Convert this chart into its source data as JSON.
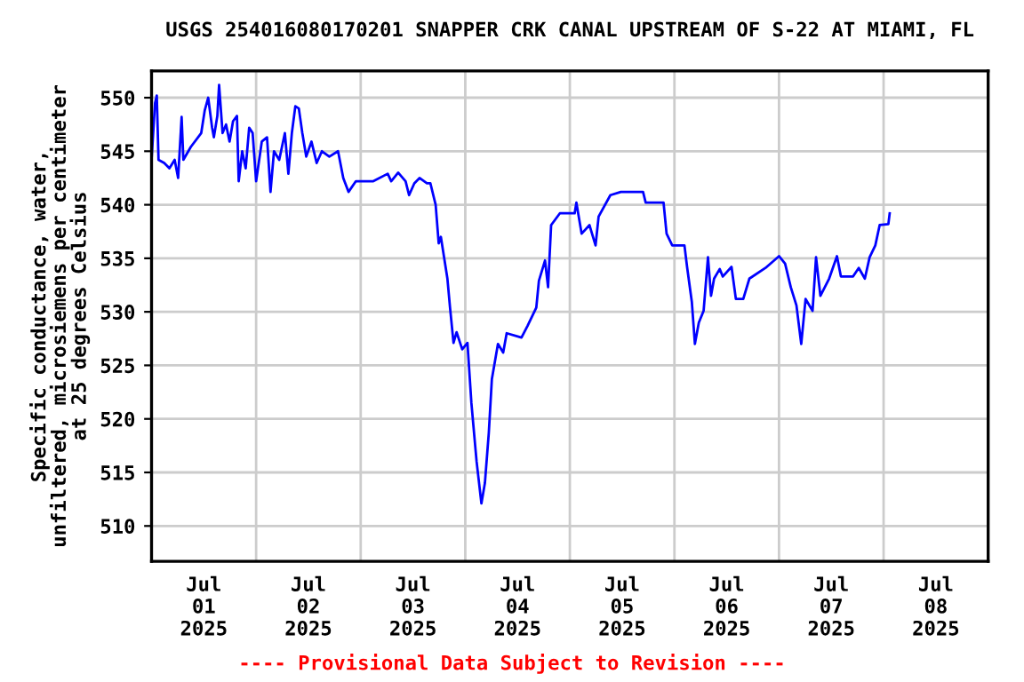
{
  "chart_data": {
    "type": "line",
    "title": "USGS 254016080170201 SNAPPER CRK CANAL UPSTREAM OF S-22 AT MIAMI, FL",
    "ylabel": "Specific conductance, water,\nunfiltered, microsiemens per centimeter\nat 25 degrees Celsius",
    "annotations": [
      "---- Provisional Data Subject to Revision ----"
    ],
    "series": [
      {
        "color": "#0000ff",
        "x": [
          "2025-07-01T00:00",
          "2025-07-01T00:48",
          "2025-07-01T01:12",
          "2025-07-01T01:36",
          "2025-07-01T02:54",
          "2025-07-01T04:06",
          "2025-07-01T05:18",
          "2025-07-01T06:06",
          "2025-07-01T06:54",
          "2025-07-01T07:18",
          "2025-07-01T09:00",
          "2025-07-01T11:24",
          "2025-07-01T12:12",
          "2025-07-01T13:00",
          "2025-07-01T13:54",
          "2025-07-01T14:18",
          "2025-07-01T15:06",
          "2025-07-01T15:30",
          "2025-07-01T16:18",
          "2025-07-01T17:06",
          "2025-07-01T17:54",
          "2025-07-01T18:42",
          "2025-07-01T19:36",
          "2025-07-01T20:00",
          "2025-07-01T20:48",
          "2025-07-01T21:36",
          "2025-07-01T22:24",
          "2025-07-01T23:12",
          "2025-07-02T00:00",
          "2025-07-02T01:18",
          "2025-07-02T02:30",
          "2025-07-02T03:18",
          "2025-07-02T04:06",
          "2025-07-02T05:18",
          "2025-07-02T06:36",
          "2025-07-02T07:24",
          "2025-07-02T08:12",
          "2025-07-02T09:00",
          "2025-07-02T09:48",
          "2025-07-02T10:36",
          "2025-07-02T11:30",
          "2025-07-02T12:42",
          "2025-07-02T13:54",
          "2025-07-02T15:06",
          "2025-07-02T16:48",
          "2025-07-02T18:48",
          "2025-07-02T20:00",
          "2025-07-02T21:12",
          "2025-07-02T22:54",
          "2025-07-03T02:54",
          "2025-07-03T06:12",
          "2025-07-03T07:00",
          "2025-07-03T08:36",
          "2025-07-03T10:18",
          "2025-07-03T11:06",
          "2025-07-03T12:18",
          "2025-07-03T13:30",
          "2025-07-03T15:12",
          "2025-07-03T16:00",
          "2025-07-03T17:12",
          "2025-07-03T17:54",
          "2025-07-03T18:24",
          "2025-07-03T19:54",
          "2025-07-03T20:30",
          "2025-07-03T21:18",
          "2025-07-03T22:00",
          "2025-07-03T23:18",
          "2025-07-04T00:30",
          "2025-07-04T01:24",
          "2025-07-04T02:36",
          "2025-07-04T03:42",
          "2025-07-04T04:30",
          "2025-07-04T05:24",
          "2025-07-04T06:06",
          "2025-07-04T07:30",
          "2025-07-04T08:42",
          "2025-07-04T09:30",
          "2025-07-04T12:54",
          "2025-07-04T14:18",
          "2025-07-04T16:18",
          "2025-07-04T16:54",
          "2025-07-04T18:18",
          "2025-07-04T19:00",
          "2025-07-04T19:42",
          "2025-07-04T21:42",
          "2025-07-05T01:06",
          "2025-07-05T01:30",
          "2025-07-05T02:42",
          "2025-07-05T04:30",
          "2025-07-05T05:54",
          "2025-07-05T06:36",
          "2025-07-05T09:18",
          "2025-07-05T11:42",
          "2025-07-05T16:48",
          "2025-07-05T17:24",
          "2025-07-05T21:30",
          "2025-07-05T22:12",
          "2025-07-05T23:30",
          "2025-07-06T02:18",
          "2025-07-06T02:54",
          "2025-07-06T04:00",
          "2025-07-06T04:42",
          "2025-07-06T05:36",
          "2025-07-06T06:42",
          "2025-07-06T07:42",
          "2025-07-06T08:24",
          "2025-07-06T09:06",
          "2025-07-06T10:24",
          "2025-07-06T11:06",
          "2025-07-06T13:06",
          "2025-07-06T14:06",
          "2025-07-06T15:48",
          "2025-07-06T17:12",
          "2025-07-06T20:54",
          "2025-07-07T00:00",
          "2025-07-07T01:24",
          "2025-07-07T02:42",
          "2025-07-07T04:00",
          "2025-07-07T05:06",
          "2025-07-07T06:06",
          "2025-07-07T07:42",
          "2025-07-07T08:30",
          "2025-07-07T09:30",
          "2025-07-07T11:30",
          "2025-07-07T13:18",
          "2025-07-07T14:12",
          "2025-07-07T17:00",
          "2025-07-07T18:18",
          "2025-07-07T19:42",
          "2025-07-07T20:48",
          "2025-07-07T22:06",
          "2025-07-07T23:06",
          "2025-07-08T01:06",
          "2025-07-08T01:24"
        ],
        "values": [
          544.2,
          549.5,
          550.2,
          544.2,
          543.9,
          543.4,
          544.2,
          542.5,
          548.2,
          544.2,
          545.4,
          546.7,
          548.8,
          550,
          547.2,
          546.3,
          548.3,
          551.2,
          546.7,
          547.5,
          545.9,
          547.8,
          548.3,
          542.2,
          545,
          543.4,
          547.2,
          546.7,
          542.2,
          545.9,
          546.3,
          541.2,
          545,
          544.2,
          546.7,
          542.9,
          546.7,
          549.2,
          549,
          546.7,
          544.5,
          545.9,
          543.9,
          545,
          544.5,
          545,
          542.5,
          541.2,
          542.2,
          542.2,
          542.9,
          542.2,
          543,
          542.2,
          540.9,
          542,
          542.5,
          542,
          542,
          540,
          536.4,
          537,
          533.1,
          530.4,
          527.1,
          528.1,
          526.5,
          527.1,
          521.5,
          516,
          512.1,
          514,
          518.7,
          523.7,
          527,
          526.2,
          528,
          527.6,
          528.7,
          530.4,
          532.9,
          534.8,
          532.3,
          538.1,
          539.2,
          539.2,
          540.2,
          537.3,
          538.1,
          536.2,
          538.9,
          540.9,
          541.2,
          541.2,
          540.2,
          540.2,
          537.3,
          536.2,
          536.2,
          534.2,
          530.9,
          527,
          529,
          530.1,
          535.1,
          531.5,
          533.1,
          534,
          533.3,
          534.2,
          531.2,
          531.2,
          533.1,
          534.1,
          535.2,
          534.5,
          532.3,
          530.6,
          527,
          531.2,
          530.1,
          535.1,
          531.5,
          533.1,
          535.2,
          533.3,
          533.3,
          534.1,
          533.1,
          535.1,
          536.2,
          538.1,
          538.2,
          539.2
        ]
      }
    ],
    "xlim": [
      "2025-07-01T00:00",
      "2025-07-09T00:00"
    ],
    "xticks": [
      {
        "value": "2025-07-01T00:00",
        "label": null
      },
      {
        "value": "2025-07-01T12:00",
        "label": "Jul\n01\n2025"
      },
      {
        "value": "2025-07-02T00:00",
        "label": null
      },
      {
        "value": "2025-07-02T12:00",
        "label": "Jul\n02\n2025"
      },
      {
        "value": "2025-07-03T00:00",
        "label": null
      },
      {
        "value": "2025-07-03T12:00",
        "label": "Jul\n03\n2025"
      },
      {
        "value": "2025-07-04T00:00",
        "label": null
      },
      {
        "value": "2025-07-04T12:00",
        "label": "Jul\n04\n2025"
      },
      {
        "value": "2025-07-05T00:00",
        "label": null
      },
      {
        "value": "2025-07-05T12:00",
        "label": "Jul\n05\n2025"
      },
      {
        "value": "2025-07-06T00:00",
        "label": null
      },
      {
        "value": "2025-07-06T12:00",
        "label": "Jul\n06\n2025"
      },
      {
        "value": "2025-07-07T00:00",
        "label": null
      },
      {
        "value": "2025-07-07T12:00",
        "label": "Jul\n07\n2025"
      },
      {
        "value": "2025-07-08T00:00",
        "label": null
      },
      {
        "value": "2025-07-08T12:00",
        "label": "Jul\n08\n2025"
      },
      {
        "value": "2025-07-09T00:00",
        "label": null
      }
    ],
    "ylim": [
      506.7,
      552.5
    ],
    "yticks": [
      510,
      515,
      520,
      525,
      530,
      535,
      540,
      545,
      550
    ],
    "grid": true
  }
}
